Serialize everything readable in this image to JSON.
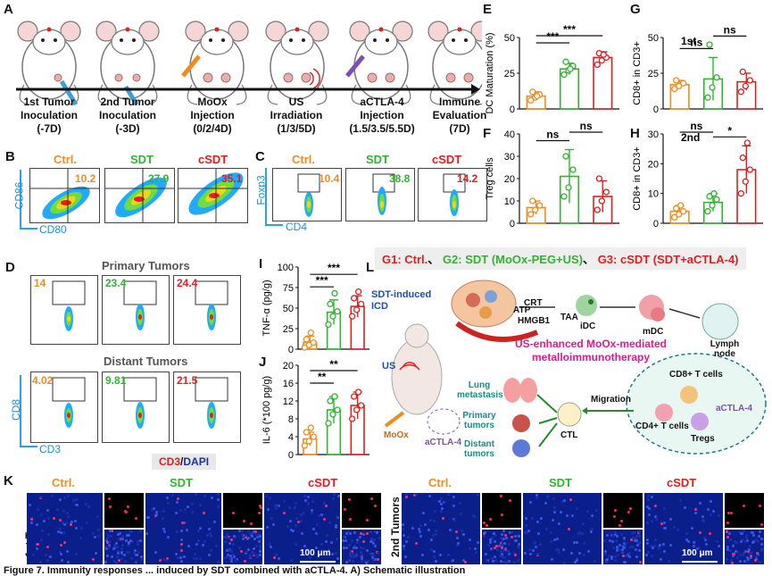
{
  "panel_labels": {
    "A": "A",
    "B": "B",
    "C": "C",
    "D": "D",
    "E": "E",
    "F": "F",
    "G": "G",
    "H": "H",
    "I": "I",
    "J": "J",
    "K": "K",
    "L": "L"
  },
  "timeline": {
    "steps": [
      {
        "line1": "1st Tumor",
        "line2": "Inoculation",
        "line3": "(-7D)"
      },
      {
        "line1": "2nd Tumor",
        "line2": "Inoculation",
        "line3": "(-3D)"
      },
      {
        "line1": "MoOx",
        "line2": "Injection",
        "line3": "(0/2/4D)"
      },
      {
        "line1": "US",
        "line2": "Irradiation",
        "line3": "(1/3/5D)"
      },
      {
        "line1": "aCTLA-4",
        "line2": "Injection",
        "line3": "(1.5/3.5/5.5D)"
      },
      {
        "line1": "Immune",
        "line2": "Evaluation",
        "line3": "(7D)"
      }
    ]
  },
  "groups": {
    "ctrl": "Ctrl.",
    "sdt": "SDT",
    "csdt": "cSDT"
  },
  "colors": {
    "ctrl": "#f08c1e",
    "sdt": "#2fb42f",
    "csdt": "#e01e1e",
    "axis": "#29a3dc",
    "pink": "#e0198c"
  },
  "panel_b": {
    "values": [
      "10.2",
      "27.9",
      "35.1"
    ],
    "ylabel": "CD86",
    "xlabel": "CD80"
  },
  "panel_c": {
    "values": [
      "10.4",
      "38.8",
      "14.2"
    ],
    "ylabel": "Foxp3",
    "xlabel": "CD4"
  },
  "panel_d": {
    "title_primary": "Primary Tumors",
    "title_distant": "Distant Tumors",
    "primary": [
      "14",
      "23.4",
      "24.4"
    ],
    "distant": [
      "4.02",
      "9.81",
      "21.5"
    ],
    "ylabel": "CD8",
    "xlabel": "CD3"
  },
  "panel_k": {
    "stain_cd3": "CD3",
    "stain_sep": "/",
    "stain_dapi": "DAPI",
    "row1": "1st Tumors",
    "row2": "2nd Tumors",
    "scalebar": "100 μm"
  },
  "legend_groups": {
    "g1": "G1: Ctrl.",
    "sep1": "、",
    "g2": "G2: SDT (MoOx-PEG+US)",
    "sep2": "、",
    "g3": "G3: cSDT (SDT+aCTLA-4)"
  },
  "schematic": {
    "sdt_icd": "SDT-induced ICD",
    "atp": "ATP",
    "crt": "CRT",
    "hmgb1": "HMGB1",
    "taa": "TAA",
    "idc": "iDC",
    "mdc": "mDC",
    "lymph": "Lymph node",
    "us": "US",
    "moox": "MoOx",
    "actla4": "aCTLA-4",
    "title1": "US-enhanced MoOx-mediated",
    "title2": "metalloimmunotherapy",
    "lung": "Lung metastasis",
    "primary": "Primary tumors",
    "distant": "Distant tumors",
    "ctl": "CTL",
    "migration": "Migration",
    "cd8": "CD8+ T cells",
    "cd4": "CD4+ T cells",
    "tregs": "Tregs",
    "actla4b": "aCTLA-4"
  },
  "chart_data": [
    {
      "id": "E",
      "type": "bar",
      "ylabel": "DC Maturation (%)",
      "ylim": [
        0,
        50
      ],
      "yticks": [
        0,
        25,
        50
      ],
      "categories": [
        "Ctrl.",
        "SDT",
        "cSDT"
      ],
      "values": [
        9,
        28,
        36
      ],
      "errors": [
        3,
        4,
        4
      ],
      "points": [
        [
          6,
          8,
          10,
          12,
          9
        ],
        [
          24,
          27,
          30,
          33,
          28
        ],
        [
          31,
          34,
          36,
          39,
          38
        ]
      ],
      "sig": [
        {
          "from": 0,
          "to": 1,
          "label": "***"
        },
        {
          "from": 0,
          "to": 2,
          "label": "***"
        }
      ]
    },
    {
      "id": "F",
      "type": "bar",
      "ylabel": "Treg cells",
      "ylim": [
        0,
        40
      ],
      "yticks": [
        0,
        10,
        20,
        30,
        40
      ],
      "categories": [
        "Ctrl.",
        "SDT",
        "cSDT"
      ],
      "values": [
        7,
        21,
        12
      ],
      "errors": [
        3,
        12,
        7
      ],
      "points": [
        [
          4,
          6,
          8,
          10
        ],
        [
          12,
          16,
          24,
          30
        ],
        [
          6,
          10,
          14,
          20
        ]
      ],
      "sig": [
        {
          "from": 0,
          "to": 1,
          "label": "ns"
        },
        {
          "from": 1,
          "to": 2,
          "label": "ns"
        }
      ]
    },
    {
      "id": "G",
      "type": "bar",
      "title": "1st",
      "ylabel": "CD8+ in CD3+",
      "ylim": [
        0,
        50
      ],
      "yticks": [
        0,
        25,
        50
      ],
      "categories": [
        "Ctrl.",
        "SDT",
        "cSDT"
      ],
      "values": [
        17,
        21,
        19
      ],
      "errors": [
        3,
        15,
        6
      ],
      "points": [
        [
          14,
          16,
          18,
          20
        ],
        [
          8,
          15,
          22,
          45
        ],
        [
          12,
          16,
          20,
          26
        ]
      ],
      "sig": [
        {
          "from": 0,
          "to": 1,
          "label": "ns"
        },
        {
          "from": 1,
          "to": 2,
          "label": "ns"
        }
      ]
    },
    {
      "id": "H",
      "type": "bar",
      "title": "2nd",
      "ylabel": "CD8+ in CD3+",
      "ylim": [
        0,
        30
      ],
      "yticks": [
        0,
        10,
        20,
        30
      ],
      "categories": [
        "Ctrl.",
        "SDT",
        "cSDT"
      ],
      "values": [
        4,
        7,
        18
      ],
      "errors": [
        2,
        3,
        8
      ],
      "points": [
        [
          2,
          3,
          4,
          5,
          6
        ],
        [
          4,
          6,
          8,
          9,
          10
        ],
        [
          10,
          14,
          18,
          22,
          27
        ]
      ],
      "sig": [
        {
          "from": 1,
          "to": 2,
          "label": "*"
        },
        {
          "from": 0,
          "to": 1,
          "label": "ns"
        }
      ]
    },
    {
      "id": "I",
      "type": "bar",
      "ylabel": "TNF-α (pg/g)",
      "ylim": [
        0,
        100
      ],
      "yticks": [
        0,
        25,
        50,
        75,
        100
      ],
      "categories": [
        "Ctrl.",
        "SDT",
        "cSDT"
      ],
      "values": [
        8,
        45,
        52
      ],
      "errors": [
        8,
        15,
        13
      ],
      "points": [
        [
          2,
          5,
          8,
          12,
          20
        ],
        [
          30,
          40,
          46,
          55,
          68
        ],
        [
          40,
          48,
          55,
          62,
          70
        ]
      ],
      "sig": [
        {
          "from": 0,
          "to": 1,
          "label": "***"
        },
        {
          "from": 0,
          "to": 2,
          "label": "***"
        }
      ]
    },
    {
      "id": "J",
      "type": "bar",
      "ylabel": "IL-6 (*100 pg/g)",
      "ylim": [
        0,
        20
      ],
      "yticks": [
        0,
        4,
        8,
        12,
        16,
        20
      ],
      "categories": [
        "Ctrl.",
        "SDT",
        "cSDT"
      ],
      "values": [
        3.5,
        10,
        11
      ],
      "errors": [
        1.5,
        3,
        3
      ],
      "points": [
        [
          2,
          3,
          4,
          5,
          6
        ],
        [
          7,
          9,
          10,
          12,
          13
        ],
        [
          8,
          10,
          11,
          13,
          14
        ]
      ],
      "sig": [
        {
          "from": 0,
          "to": 1,
          "label": "**"
        },
        {
          "from": 0,
          "to": 2,
          "label": "**"
        }
      ]
    }
  ],
  "caption": "Figure 7. Immunity responses ... induced by SDT combined with aCTLA-4. A) Schematic illustration"
}
